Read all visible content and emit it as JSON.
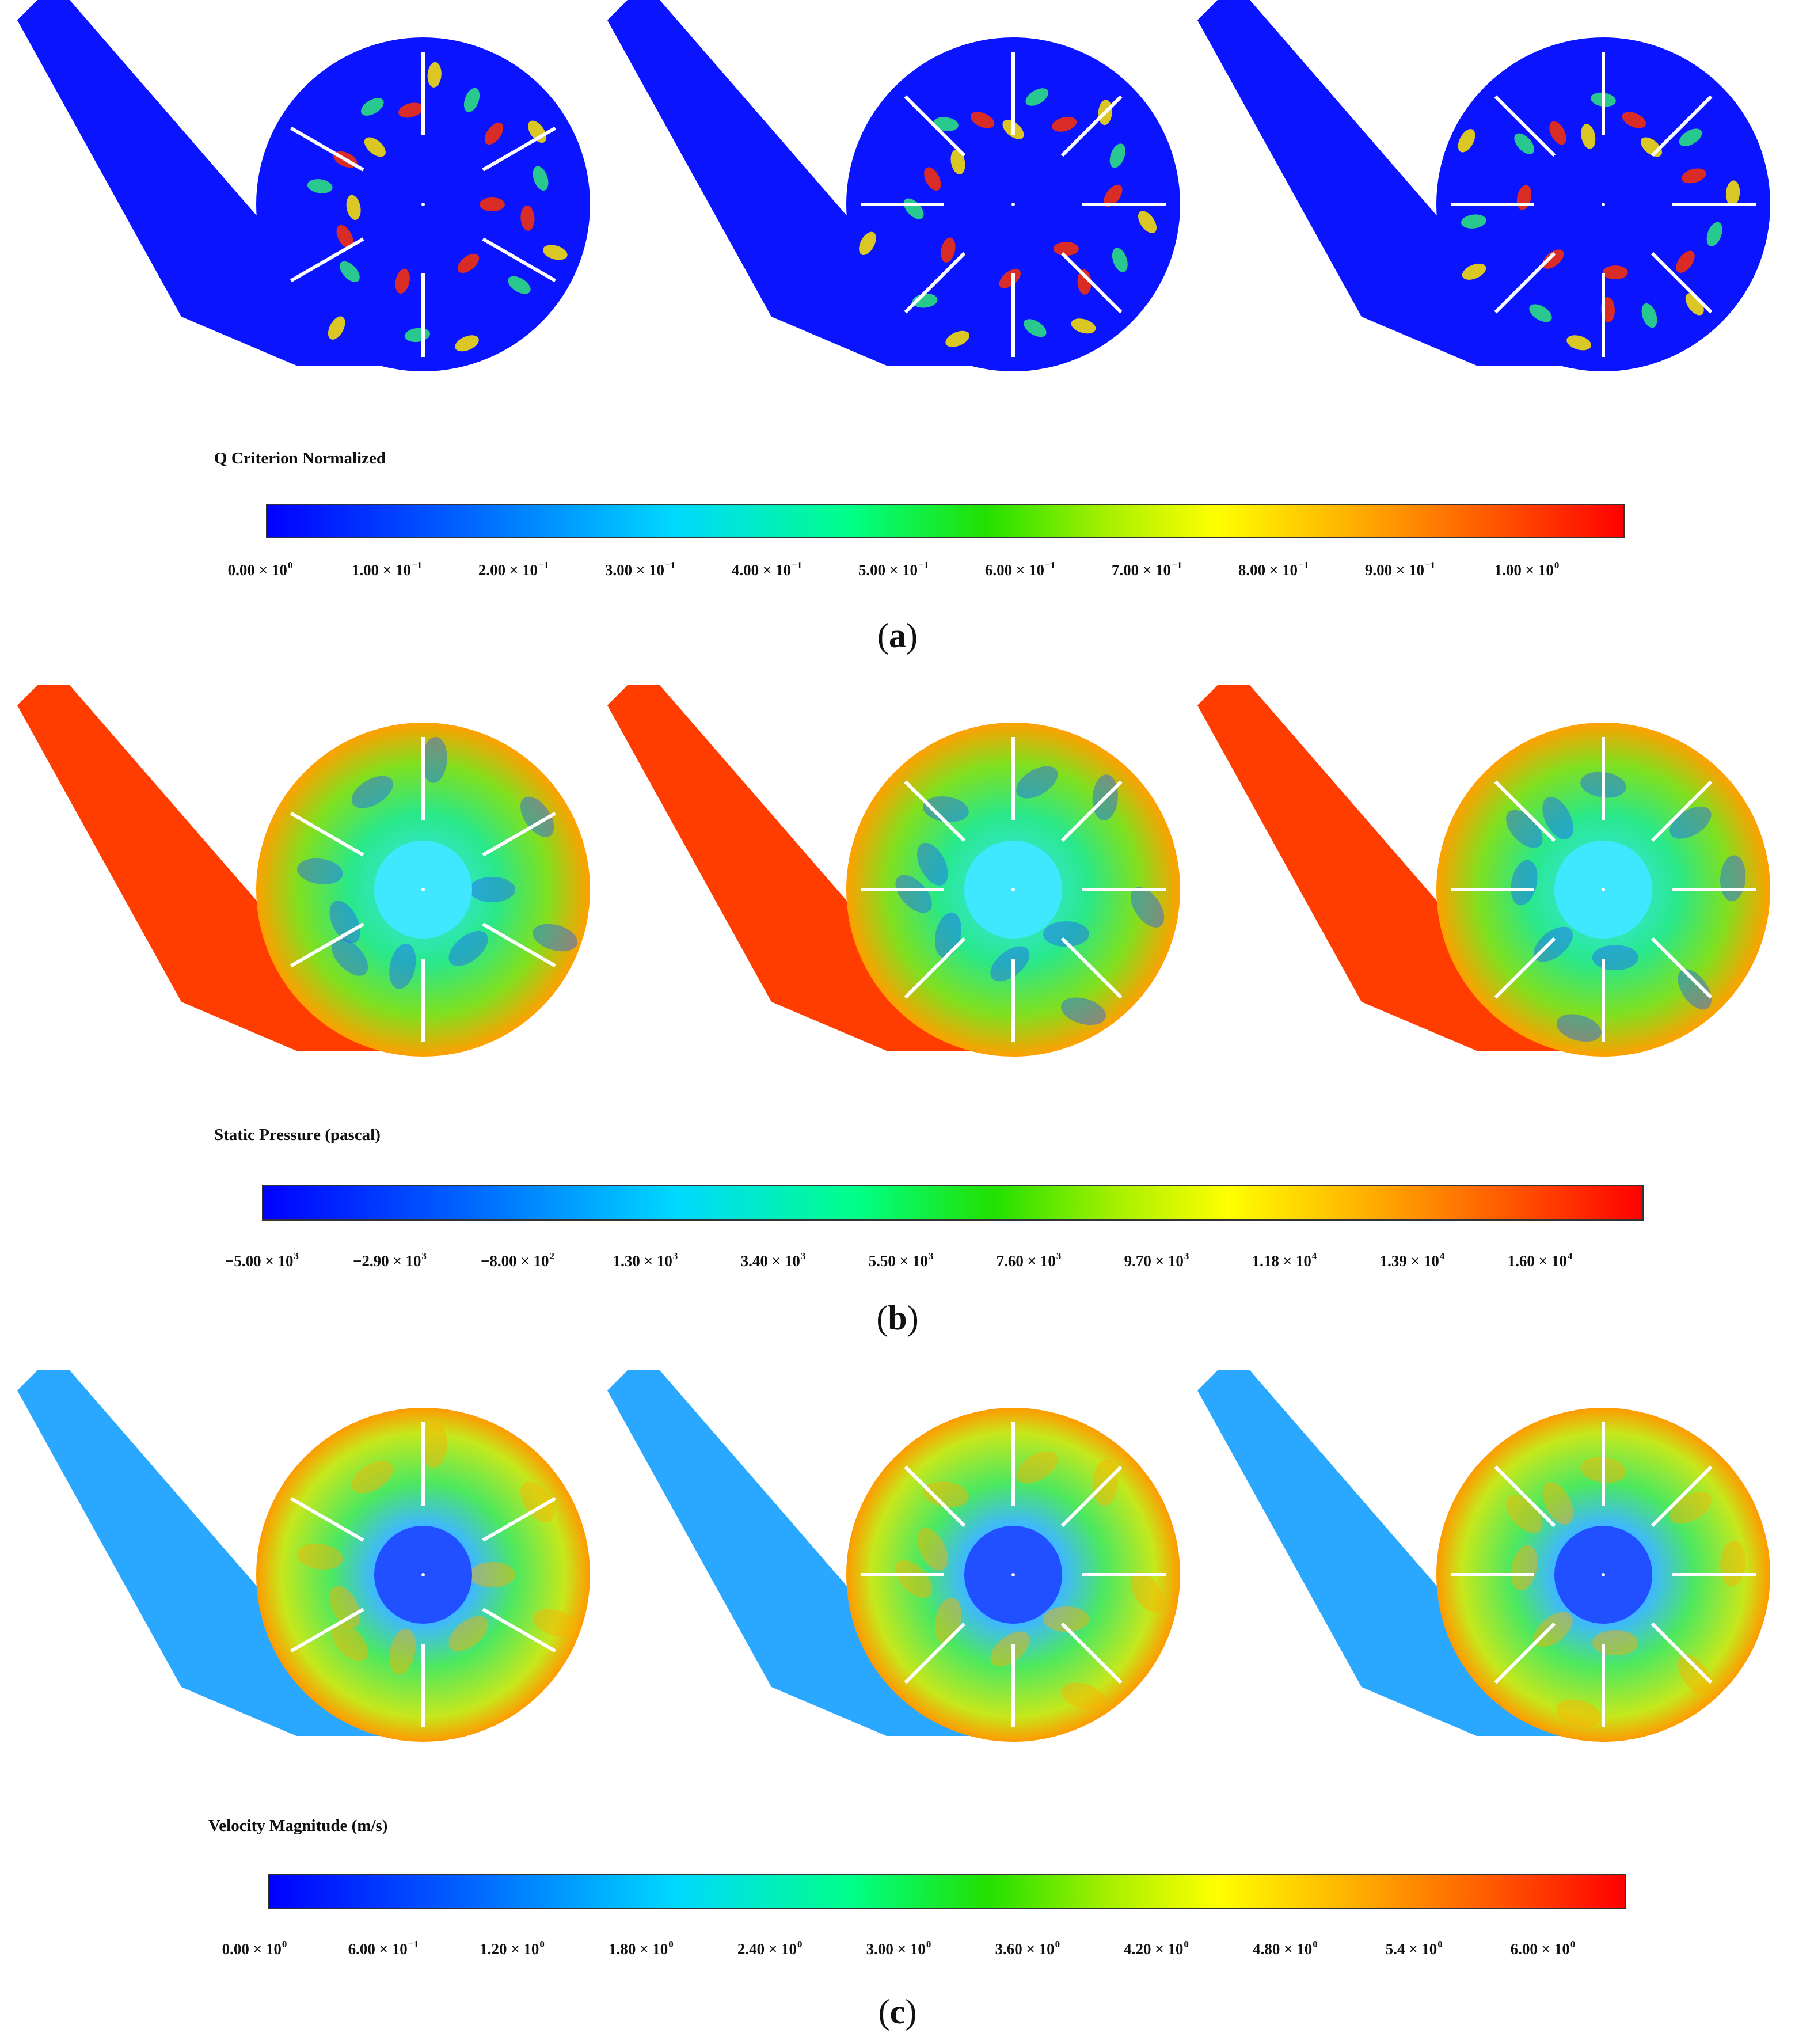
{
  "panels": [
    {
      "caption_open": "(",
      "caption_letter": "a",
      "caption_close": ")",
      "scale_title": "Q Criterion Normalized",
      "colors": {
        "body": "#0a14ff",
        "mid": "#00d9ff",
        "hot": "#ff2a00"
      },
      "ticks": [
        {
          "m": "0.00 × 10",
          "e": "0"
        },
        {
          "m": "1.00 × 10",
          "e": "−1"
        },
        {
          "m": "2.00 × 10",
          "e": "−1"
        },
        {
          "m": "3.00 × 10",
          "e": "−1"
        },
        {
          "m": "4.00 × 10",
          "e": "−1"
        },
        {
          "m": "5.00 × 10",
          "e": "−1"
        },
        {
          "m": "6.00 × 10",
          "e": "−1"
        },
        {
          "m": "7.00 × 10",
          "e": "−1"
        },
        {
          "m": "8.00 × 10",
          "e": "−1"
        },
        {
          "m": "9.00 × 10",
          "e": "−1"
        },
        {
          "m": "1.00 × 10",
          "e": "0"
        }
      ]
    },
    {
      "caption_open": "(",
      "caption_letter": "b",
      "caption_close": ")",
      "scale_title": "Static Pressure (pascal)",
      "colors": {
        "body": "#ff3d00",
        "mid": "#33e06b",
        "hot": "#30b4ff"
      },
      "ticks": [
        {
          "m": "−5.00 × 10",
          "e": "3"
        },
        {
          "m": "−2.90 × 10",
          "e": "3"
        },
        {
          "m": "−8.00 × 10",
          "e": "2"
        },
        {
          "m": "1.30 × 10",
          "e": "3"
        },
        {
          "m": "3.40 × 10",
          "e": "3"
        },
        {
          "m": "5.50 × 10",
          "e": "3"
        },
        {
          "m": "7.60 × 10",
          "e": "3"
        },
        {
          "m": "9.70 × 10",
          "e": "3"
        },
        {
          "m": "1.18 × 10",
          "e": "4"
        },
        {
          "m": "1.39 × 10",
          "e": "4"
        },
        {
          "m": "1.60 × 10",
          "e": "4"
        }
      ]
    },
    {
      "caption_open": "(",
      "caption_letter": "c",
      "caption_close": ")",
      "scale_title": "Velocity Magnitude (m/s)",
      "colors": {
        "body": "#1d8fff",
        "mid": "#9be020",
        "hot": "#1e5cff"
      },
      "ticks": [
        {
          "m": "0.00 × 10",
          "e": "0"
        },
        {
          "m": "6.00 × 10",
          "e": "−1"
        },
        {
          "m": "1.20 × 10",
          "e": "0"
        },
        {
          "m": "1.80 × 10",
          "e": "0"
        },
        {
          "m": "2.40 × 10",
          "e": "0"
        },
        {
          "m": "3.00 × 10",
          "e": "0"
        },
        {
          "m": "3.60 × 10",
          "e": "0"
        },
        {
          "m": "4.20 × 10",
          "e": "0"
        },
        {
          "m": "4.80 × 10",
          "e": "0"
        },
        {
          "m": "5.4 × 10",
          "e": "0"
        },
        {
          "m": "6.00 × 10",
          "e": "0"
        }
      ]
    }
  ],
  "blade_counts": [
    6,
    8,
    8
  ]
}
